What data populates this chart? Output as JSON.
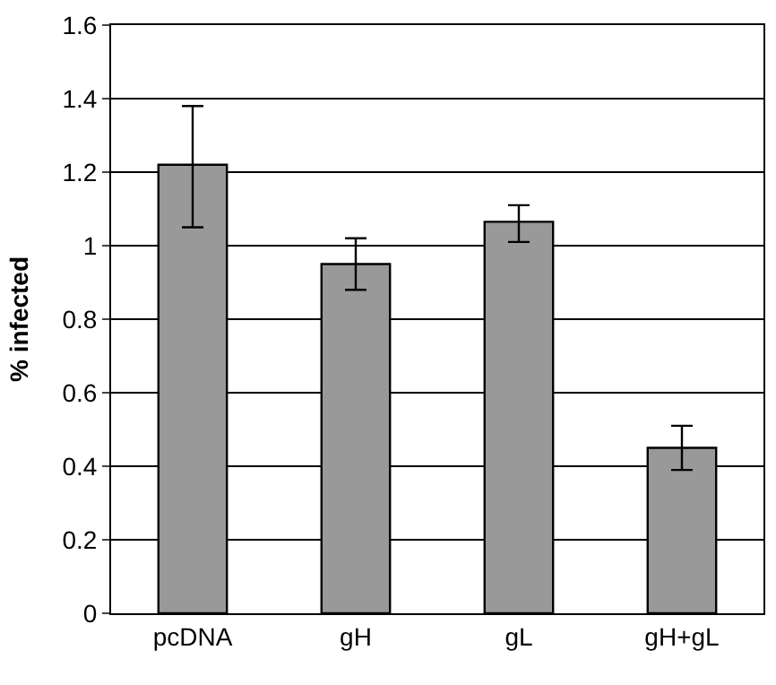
{
  "chart_data": {
    "type": "bar",
    "ylabel": "% infected",
    "categories": [
      "pcDNA",
      "gH",
      "gL",
      "gH+gL"
    ],
    "series": [
      {
        "color": "#999999",
        "values": [
          1.22,
          0.95,
          1.065,
          0.45
        ],
        "errors": [
          [
            1.05,
            1.38
          ],
          [
            0.88,
            1.02
          ],
          [
            1.01,
            1.11
          ],
          [
            0.39,
            0.51
          ]
        ]
      }
    ],
    "ylim": [
      0,
      1.6
    ],
    "yticks": [
      0,
      0.2,
      0.4,
      0.6,
      0.8,
      1,
      1.2,
      1.4,
      1.6
    ],
    "grid": "y"
  }
}
